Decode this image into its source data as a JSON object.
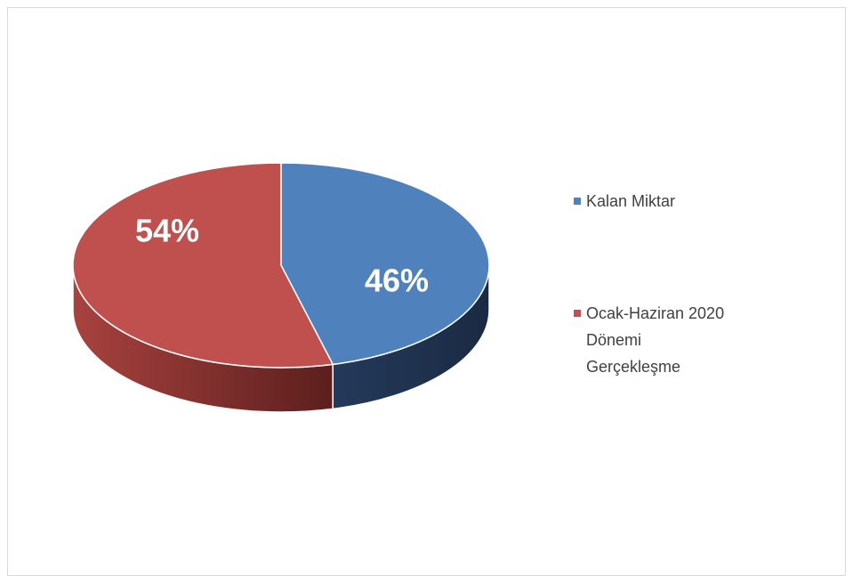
{
  "chart_data": {
    "type": "pie3d",
    "categories": [
      "Kalan Miktar",
      "Ocak-Haziran 2020 Dönemi Gerçekleşme"
    ],
    "values": [
      46,
      54
    ],
    "value_labels": [
      "46%",
      "54%"
    ],
    "colors": [
      "#4f81bd",
      "#c0504d"
    ],
    "legend": "right"
  }
}
